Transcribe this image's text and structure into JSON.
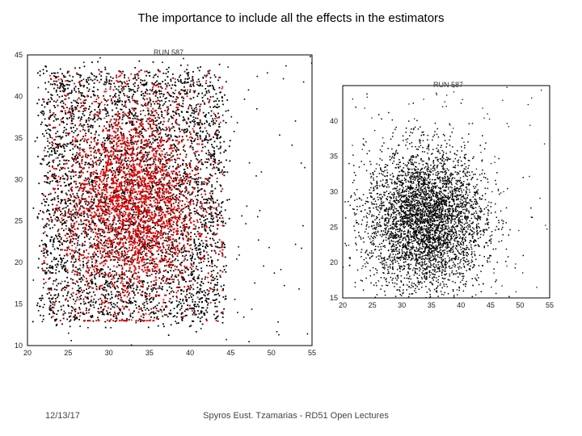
{
  "slide": {
    "title": "The importance to include all the effects in the estimators",
    "date": "12/13/17",
    "credit": "Spyros Eust. Tzamarias - RD51 Open Lectures"
  },
  "chart_data": [
    {
      "type": "scatter",
      "title": "RUN 587",
      "xlim": [
        20,
        55
      ],
      "ylim": [
        10,
        45
      ],
      "x_ticks": [
        20,
        25,
        30,
        35,
        40,
        45,
        50,
        55
      ],
      "y_ticks": [
        10,
        15,
        20,
        25,
        30,
        35,
        40,
        45
      ],
      "grid": false,
      "colors": {
        "series_black": "#000000",
        "series_red": "#e00000"
      },
      "series": [
        {
          "color": "black",
          "shape": "uniform rectangle",
          "x_range": [
            22,
            44
          ],
          "y_range": [
            13,
            43
          ]
        },
        {
          "color": "red",
          "shape": "gaussian blob",
          "center": [
            33,
            27
          ],
          "spread": [
            4,
            6
          ]
        }
      ]
    },
    {
      "type": "scatter",
      "title": "RUN 587",
      "xlim": [
        20,
        55
      ],
      "ylim": [
        15,
        45
      ],
      "x_ticks": [
        20,
        25,
        30,
        35,
        40,
        45,
        50,
        55
      ],
      "y_ticks": [
        15,
        20,
        25,
        30,
        35,
        40
      ],
      "grid": false,
      "colors": {
        "series_black": "#000000"
      },
      "series": [
        {
          "color": "black",
          "shape": "gaussian blob",
          "center": [
            34,
            26
          ],
          "spread": [
            5,
            5
          ]
        }
      ]
    }
  ]
}
